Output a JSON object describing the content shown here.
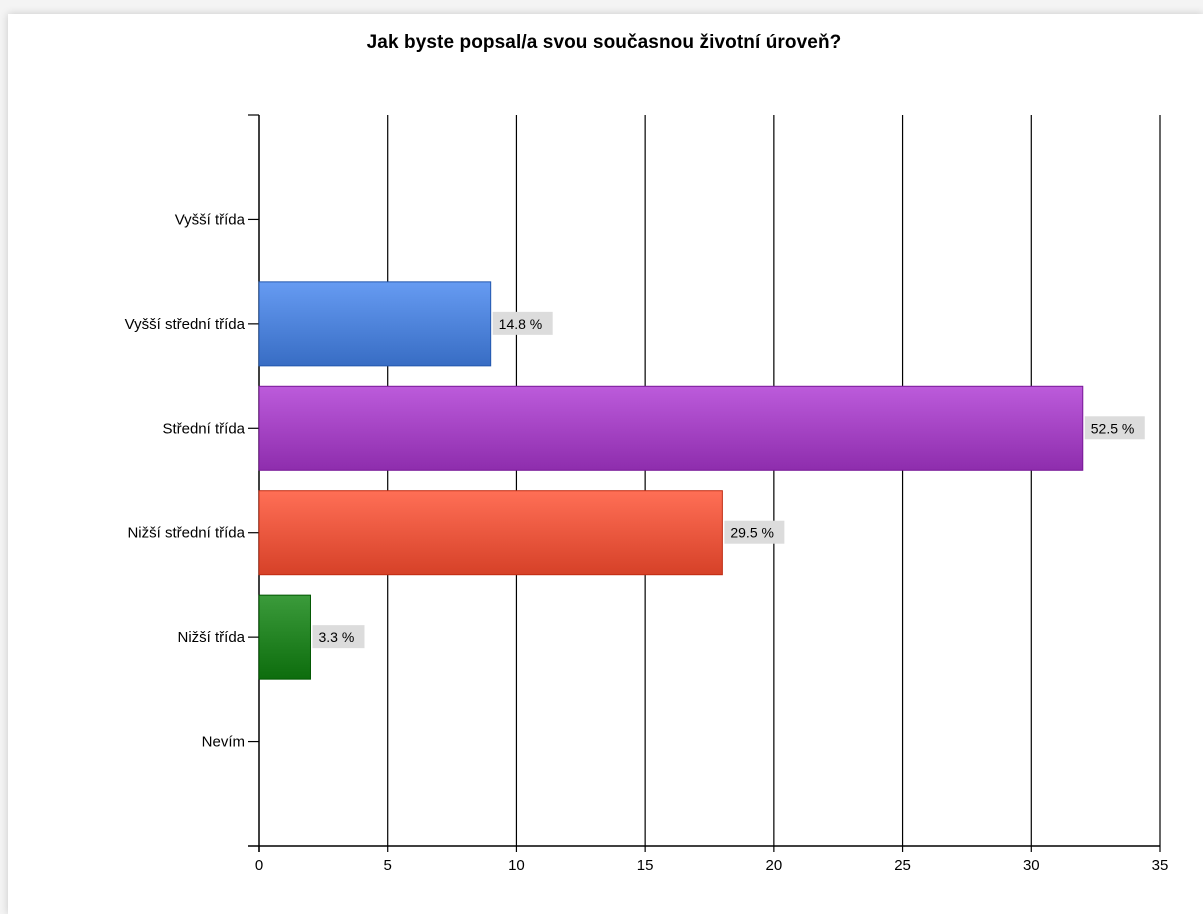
{
  "chart_data": {
    "type": "bar",
    "orientation": "horizontal",
    "title": "Jak byste popsal/a svou současnou životní úroveň?",
    "categories": [
      "Vyšší třída",
      "Vyšší střední třída",
      "Střední třída",
      "Nižší střední třída",
      "Nižší třída",
      "Nevím"
    ],
    "values": [
      0,
      9,
      32,
      18,
      2,
      0
    ],
    "labels": [
      "",
      "14.8 %",
      "52.5 %",
      "29.5 %",
      "3.3 %",
      ""
    ],
    "colors": [
      "",
      "#4a7fd6",
      "#a03fbf",
      "#e8533a",
      "#1f7f1f",
      ""
    ],
    "x_ticks": [
      "0",
      "5",
      "10",
      "15",
      "20",
      "25",
      "30",
      "35"
    ],
    "xlim": [
      0,
      35
    ],
    "grid": true,
    "legend": "none"
  }
}
